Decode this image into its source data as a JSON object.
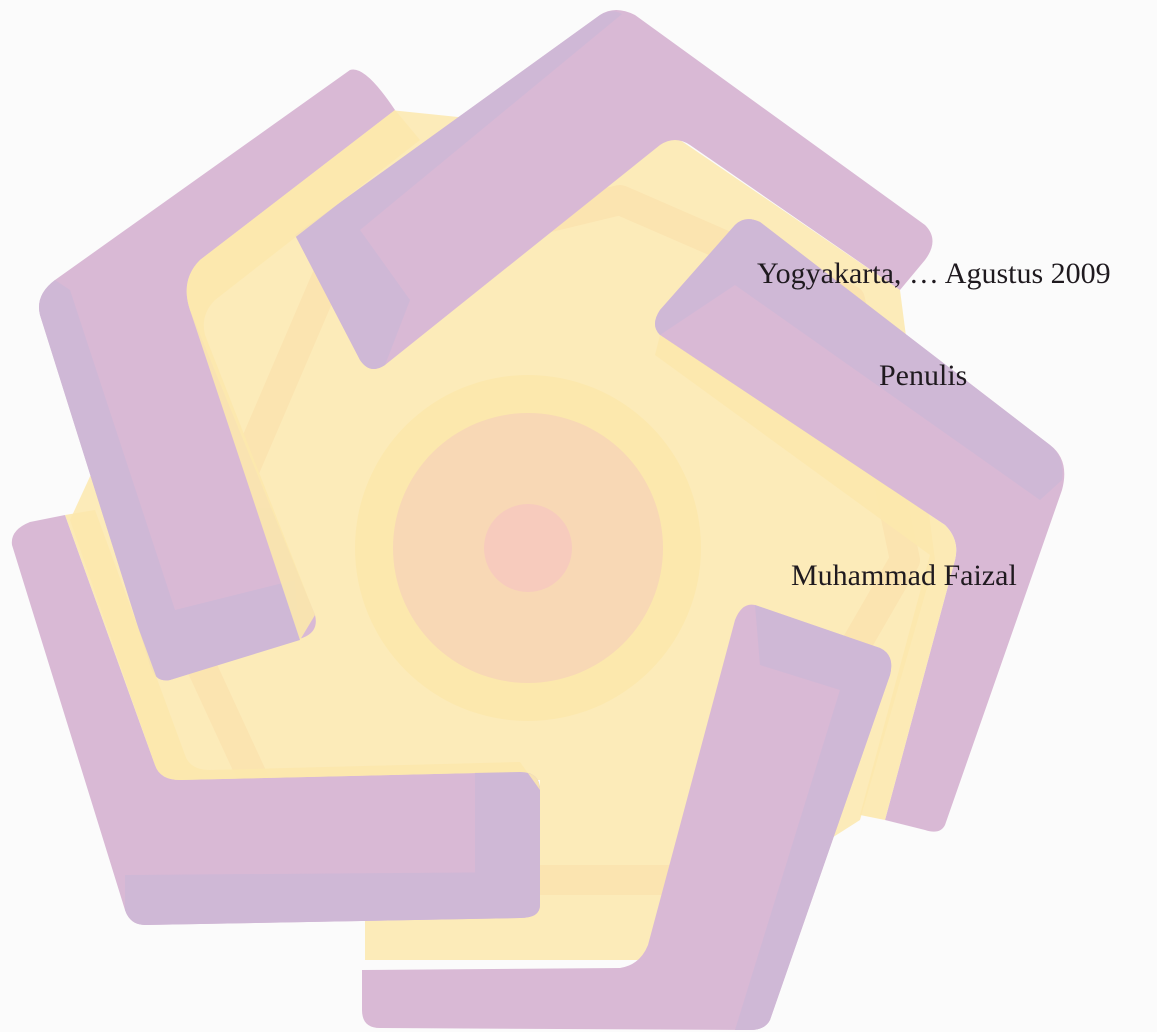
{
  "colors": {
    "background": "#fbfbfb",
    "watermark_purple": "#d9b9d5",
    "watermark_purple_shadow": "#cfb8d6",
    "watermark_yellow": "#fce8ad",
    "watermark_peach": "#f8d8b5",
    "watermark_pink": "#f7cbbd",
    "text": "#1f1a1f"
  },
  "signature": {
    "place_date": "Yogyakarta, … Agustus 2009",
    "role": "Penulis",
    "name": "Muhammad Faizal"
  }
}
